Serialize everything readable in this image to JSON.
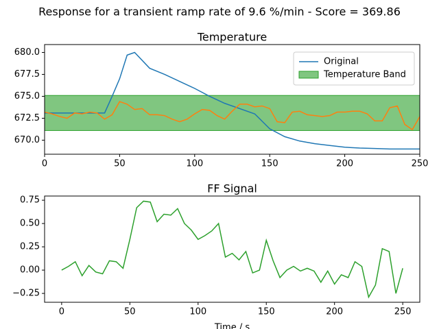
{
  "title": "Response for a transient ramp rate of 9.6 %/min - Score = 369.86",
  "chart_data": [
    {
      "type": "line",
      "title": "Temperature",
      "xlim": [
        0,
        250
      ],
      "xticks": [
        0,
        50,
        100,
        150,
        200,
        250
      ],
      "ylim": [
        668.4,
        680.9
      ],
      "yticks": [
        {
          "value": 670,
          "label": "670.0"
        },
        {
          "value": 672.5,
          "label": "672.5"
        },
        {
          "value": 675,
          "label": "675.0"
        },
        {
          "value": 677.5,
          "label": "677.5"
        },
        {
          "value": 680,
          "label": "680.0"
        }
      ],
      "legend": "upper right",
      "band": {
        "name": "Temperature Band",
        "range": [
          671.1,
          675.1
        ],
        "color": "#2ca02c"
      },
      "series": [
        {
          "name": "Original",
          "color": "#1f77b4",
          "x": [
            0,
            10,
            20,
            30,
            40,
            45,
            50,
            55,
            60,
            70,
            80,
            90,
            100,
            110,
            120,
            130,
            140,
            150,
            160,
            170,
            180,
            190,
            200,
            210,
            220,
            230,
            240,
            250
          ],
          "values": [
            673.1,
            673.1,
            673.1,
            673.1,
            673.1,
            675.0,
            677.0,
            679.7,
            680.0,
            678.2,
            677.5,
            676.7,
            675.9,
            675.0,
            674.2,
            673.6,
            673.0,
            671.3,
            670.4,
            669.9,
            669.6,
            669.4,
            669.2,
            669.1,
            669.05,
            669.0,
            669.0,
            669.0
          ]
        },
        {
          "color": "#ff7f0e",
          "x": [
            0,
            5,
            10,
            15,
            20,
            25,
            30,
            35,
            40,
            45,
            50,
            55,
            60,
            65,
            70,
            75,
            80,
            85,
            90,
            95,
            100,
            105,
            110,
            115,
            120,
            125,
            130,
            135,
            140,
            145,
            150,
            155,
            160,
            165,
            170,
            175,
            180,
            185,
            190,
            195,
            200,
            205,
            210,
            215,
            220,
            225,
            230,
            235,
            240,
            245,
            250
          ],
          "values": [
            673.2,
            673.0,
            672.7,
            672.5,
            673.1,
            673.0,
            673.2,
            673.1,
            672.4,
            672.9,
            674.4,
            674.1,
            673.5,
            673.6,
            672.9,
            672.9,
            672.8,
            672.4,
            672.1,
            672.4,
            673.0,
            673.5,
            673.4,
            672.8,
            672.4,
            673.3,
            674.1,
            674.1,
            673.8,
            673.9,
            673.6,
            672.1,
            672.0,
            673.2,
            673.3,
            672.9,
            672.8,
            672.7,
            672.8,
            673.2,
            673.2,
            673.3,
            673.3,
            673.0,
            672.2,
            672.2,
            673.7,
            673.9,
            671.8,
            671.2,
            672.7
          ]
        }
      ]
    },
    {
      "type": "line",
      "title": "FF Signal",
      "x_label": "Time / s",
      "xlim": [
        -12.5,
        262.5
      ],
      "xticks": [
        0,
        50,
        100,
        150,
        200,
        250
      ],
      "ylim": [
        -0.345,
        0.795
      ],
      "yticks": [
        {
          "value": -0.25,
          "label": "−0.25"
        },
        {
          "value": 0,
          "label": "0.00"
        },
        {
          "value": 0.25,
          "label": "0.25"
        },
        {
          "value": 0.5,
          "label": "0.50"
        },
        {
          "value": 0.75,
          "label": "0.75"
        }
      ],
      "series": [
        {
          "color": "#2ca02c",
          "x": [
            0,
            5,
            10,
            15,
            20,
            25,
            30,
            35,
            40,
            45,
            50,
            55,
            60,
            65,
            70,
            75,
            80,
            85,
            90,
            95,
            100,
            105,
            110,
            115,
            120,
            125,
            130,
            135,
            140,
            145,
            150,
            155,
            160,
            165,
            170,
            175,
            180,
            185,
            190,
            195,
            200,
            205,
            210,
            215,
            220,
            225,
            230,
            235,
            240,
            245,
            250
          ],
          "values": [
            0.0,
            0.04,
            0.09,
            -0.06,
            0.05,
            -0.02,
            -0.04,
            0.1,
            0.09,
            0.02,
            0.33,
            0.67,
            0.74,
            0.73,
            0.52,
            0.6,
            0.59,
            0.66,
            0.5,
            0.43,
            0.33,
            0.37,
            0.42,
            0.5,
            0.14,
            0.18,
            0.11,
            0.2,
            -0.03,
            0.0,
            0.32,
            0.1,
            -0.08,
            0.0,
            0.04,
            -0.01,
            0.02,
            -0.01,
            -0.13,
            -0.01,
            -0.15,
            -0.05,
            -0.08,
            0.09,
            0.04,
            -0.29,
            -0.16,
            0.23,
            0.2,
            -0.25,
            0.02
          ]
        }
      ]
    }
  ]
}
